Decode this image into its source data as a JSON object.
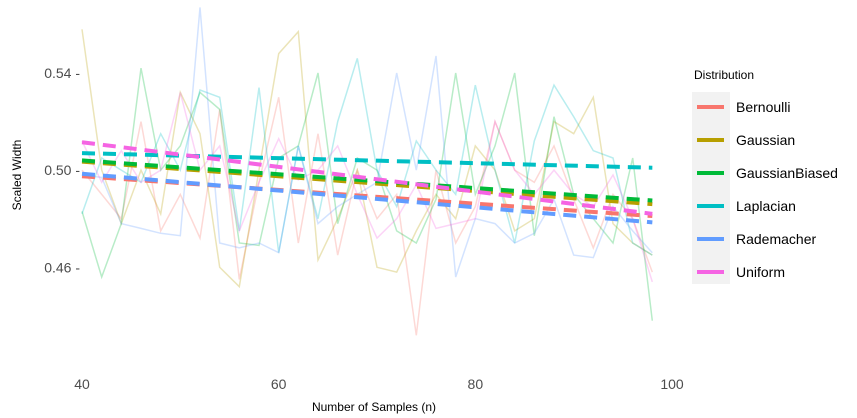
{
  "chart_data": {
    "type": "line",
    "xlabel": "Number of Samples (n)",
    "ylabel": "Scaled Width",
    "xlim": [
      40,
      100
    ],
    "ylim": [
      0.428,
      0.568
    ],
    "x_ticks": [
      40,
      60,
      80,
      100
    ],
    "x_tick_labels": [
      "40",
      "60",
      "80",
      "100"
    ],
    "y_ticks": [
      0.46,
      0.5,
      0.54
    ],
    "y_tick_labels": [
      "0.46 -",
      "0.50 -",
      "0.54 -"
    ],
    "grid": false,
    "legend": {
      "title": "Distribution",
      "placement": "right"
    },
    "raw_x": [
      40,
      42,
      44,
      46,
      48,
      50,
      52,
      54,
      56,
      58,
      60,
      62,
      64,
      66,
      68,
      70,
      72,
      74,
      76,
      78,
      80,
      82,
      84,
      86,
      88,
      90,
      92,
      94,
      96,
      98
    ],
    "series": [
      {
        "name": "Bernoulli",
        "color": "#F8766D",
        "trend": [
          0.4975,
          0.4811
        ],
        "raw": [
          0.5,
          0.49,
          0.48,
          0.52,
          0.475,
          0.49,
          0.472,
          0.525,
          0.455,
          0.495,
          0.53,
          0.47,
          0.515,
          0.465,
          0.5,
          0.48,
          0.49,
          0.432,
          0.5,
          0.47,
          0.485,
          0.52,
          0.5,
          0.495,
          0.51,
          0.488,
          0.468,
          0.49,
          0.48,
          0.458
        ]
      },
      {
        "name": "Gaussian",
        "color": "#B79F00",
        "trend": [
          0.5035,
          0.486
        ],
        "raw": [
          0.558,
          0.5,
          0.478,
          0.5,
          0.482,
          0.532,
          0.515,
          0.46,
          0.452,
          0.5,
          0.548,
          0.557,
          0.463,
          0.48,
          0.5,
          0.46,
          0.458,
          0.475,
          0.49,
          0.48,
          0.51,
          0.5,
          0.475,
          0.48,
          0.52,
          0.515,
          0.53,
          0.478,
          0.47,
          0.465
        ]
      },
      {
        "name": "GaussianBiased",
        "color": "#00BA38",
        "trend": [
          0.504,
          0.4875
        ],
        "raw": [
          0.483,
          0.456,
          0.478,
          0.542,
          0.5,
          0.51,
          0.532,
          0.525,
          0.47,
          0.469,
          0.505,
          0.51,
          0.54,
          0.478,
          0.505,
          0.5,
          0.475,
          0.47,
          0.488,
          0.54,
          0.49,
          0.51,
          0.54,
          0.473,
          0.522,
          0.49,
          0.48,
          0.47,
          0.505,
          0.438
        ]
      },
      {
        "name": "Laplacian",
        "color": "#00BFC4",
        "trend": [
          0.507,
          0.501
        ],
        "raw": [
          0.482,
          0.505,
          0.5,
          0.495,
          0.515,
          0.5,
          0.533,
          0.53,
          0.475,
          0.534,
          0.466,
          0.51,
          0.48,
          0.52,
          0.546,
          0.5,
          0.485,
          0.512,
          0.5,
          0.49,
          0.535,
          0.5,
          0.47,
          0.512,
          0.535,
          0.522,
          0.508,
          0.505,
          0.47,
          0.465
        ]
      },
      {
        "name": "Rademacher",
        "color": "#619CFF",
        "trend": [
          0.4985,
          0.4785
        ],
        "raw": [
          0.498,
          0.497,
          0.478,
          0.476,
          0.474,
          0.473,
          0.567,
          0.47,
          0.468,
          0.47,
          0.466,
          0.51,
          0.478,
          0.485,
          0.49,
          0.495,
          0.54,
          0.5,
          0.547,
          0.456,
          0.48,
          0.478,
          0.47,
          0.474,
          0.488,
          0.465,
          0.464,
          0.485,
          0.475,
          0.466
        ]
      },
      {
        "name": "Uniform",
        "color": "#F564E3",
        "trend": [
          0.5115,
          0.482
        ],
        "raw": [
          0.512,
          0.495,
          0.508,
          0.495,
          0.5,
          0.532,
          0.5,
          0.51,
          0.475,
          0.495,
          0.513,
          0.496,
          0.5,
          0.51,
          0.49,
          0.472,
          0.48,
          0.494,
          0.476,
          0.478,
          0.48,
          0.52,
          0.5,
          0.49,
          0.5,
          0.49,
          0.485,
          0.498,
          0.48,
          0.454
        ]
      }
    ]
  }
}
